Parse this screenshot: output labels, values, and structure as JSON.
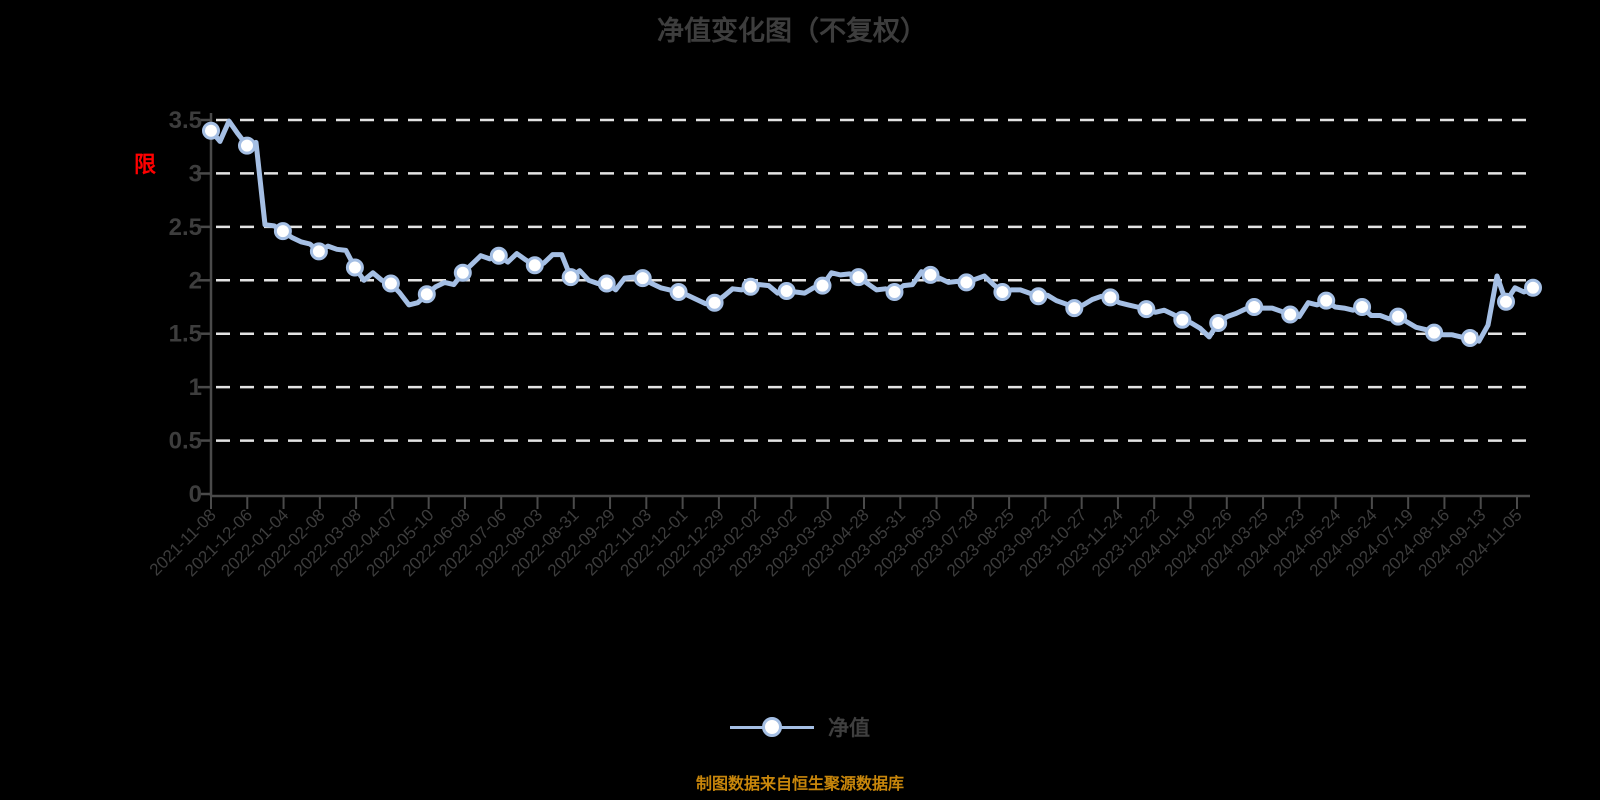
{
  "page": {
    "background": "#000000"
  },
  "chart_data": {
    "type": "line",
    "title": "净值变化图（不复权）",
    "xlabel": "",
    "ylabel": "",
    "ylim": [
      0,
      3.5
    ],
    "ytick_labels": [
      "3.5",
      "3",
      "2.5",
      "2",
      "1.5",
      "1",
      "0.5",
      "0"
    ],
    "grid": true,
    "grid_style": "dashed-white",
    "legend_position": "bottom",
    "legend": [
      {
        "name": "净值",
        "marker": "circle-on-line"
      }
    ],
    "annotation": {
      "text": "限",
      "color": "#ff0000"
    },
    "x_tick_labels": [
      "2021-11-08",
      "2021-12-06",
      "2022-01-04",
      "2022-02-08",
      "2022-03-08",
      "2022-04-07",
      "2022-05-10",
      "2022-06-08",
      "2022-07-06",
      "2022-08-03",
      "2022-08-31",
      "2022-09-29",
      "2022-11-03",
      "2022-12-01",
      "2022-12-29",
      "2023-02-02",
      "2023-03-02",
      "2023-03-30",
      "2023-04-28",
      "2023-05-31",
      "2023-06-30",
      "2023-07-28",
      "2023-08-25",
      "2023-09-22",
      "2023-10-27",
      "2023-11-24",
      "2023-12-22",
      "2024-01-19",
      "2024-02-26",
      "2024-03-25",
      "2024-04-23",
      "2024-05-24",
      "2024-06-24",
      "2024-07-19",
      "2024-08-16",
      "2024-09-13",
      "2024-11-05"
    ],
    "series": [
      {
        "name": "净值",
        "values": [
          3.4,
          3.3,
          3.49,
          3.37,
          3.26,
          3.29,
          2.52,
          2.51,
          2.46,
          2.4,
          2.36,
          2.34,
          2.27,
          2.32,
          2.29,
          2.28,
          2.12,
          2.0,
          2.07,
          2.0,
          1.97,
          1.88,
          1.77,
          1.79,
          1.87,
          1.94,
          1.98,
          1.96,
          2.07,
          2.15,
          2.23,
          2.2,
          2.23,
          2.17,
          2.25,
          2.19,
          2.14,
          2.16,
          2.24,
          2.24,
          2.03,
          2.09,
          2.0,
          1.97,
          1.97,
          1.91,
          2.02,
          2.03,
          2.02,
          1.97,
          1.93,
          1.91,
          1.89,
          1.86,
          1.82,
          1.78,
          1.79,
          1.85,
          1.92,
          1.91,
          1.94,
          1.96,
          1.95,
          1.88,
          1.9,
          1.89,
          1.88,
          1.93,
          1.95,
          2.07,
          2.05,
          2.06,
          2.03,
          1.97,
          1.91,
          1.92,
          1.89,
          1.95,
          1.96,
          2.08,
          2.05,
          2.02,
          1.98,
          1.99,
          1.98,
          2.01,
          2.04,
          1.96,
          1.89,
          1.91,
          1.91,
          1.88,
          1.85,
          1.86,
          1.81,
          1.78,
          1.74,
          1.77,
          1.82,
          1.85,
          1.84,
          1.79,
          1.77,
          1.75,
          1.73,
          1.7,
          1.72,
          1.68,
          1.63,
          1.6,
          1.55,
          1.47,
          1.6,
          1.66,
          1.69,
          1.73,
          1.75,
          1.74,
          1.74,
          1.71,
          1.68,
          1.66,
          1.79,
          1.77,
          1.81,
          1.75,
          1.74,
          1.72,
          1.75,
          1.67,
          1.67,
          1.64,
          1.66,
          1.61,
          1.56,
          1.54,
          1.51,
          1.49,
          1.49,
          1.47,
          1.46,
          1.43,
          1.58,
          2.04,
          1.8,
          1.93,
          1.89,
          1.93
        ]
      }
    ],
    "marker_every": 4,
    "colors": {
      "line": "#a5bfe4",
      "marker_fill": "#ffffff",
      "grid": "#e3e3e3",
      "axis": "#4a4a4a",
      "labels": "#3d3d3d",
      "title": "#3d3d3d",
      "annotation": "#ff0000"
    }
  },
  "footer": {
    "source_note": "制图数据来自恒生聚源数据库",
    "color": "#c8860b"
  }
}
